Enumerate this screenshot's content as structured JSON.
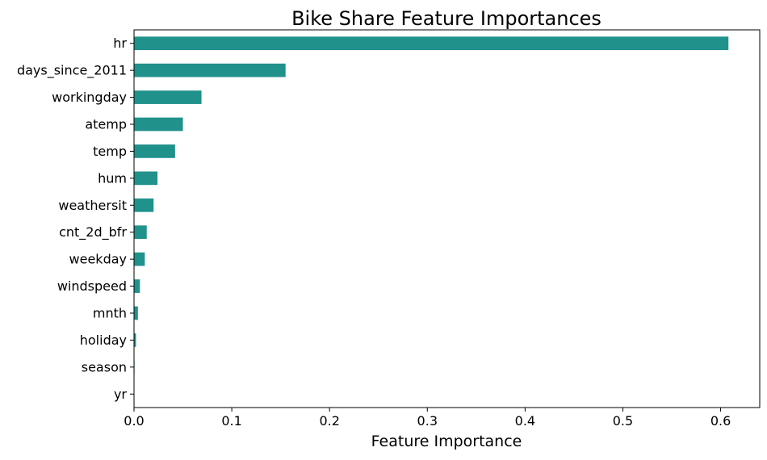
{
  "chart_data": {
    "type": "bar",
    "orientation": "horizontal",
    "title": "Bike Share Feature Importances",
    "xlabel": "Feature Importance",
    "ylabel": "",
    "categories": [
      "hr",
      "days_since_2011",
      "workingday",
      "atemp",
      "temp",
      "hum",
      "weathersit",
      "cnt_2d_bfr",
      "weekday",
      "windspeed",
      "mnth",
      "holiday",
      "season",
      "yr"
    ],
    "values": [
      0.608,
      0.155,
      0.069,
      0.05,
      0.042,
      0.024,
      0.02,
      0.013,
      0.011,
      0.006,
      0.004,
      0.002,
      0.0005,
      0.0002
    ],
    "xlim": [
      0.0,
      0.64
    ],
    "xticks": [
      "0.0",
      "0.1",
      "0.2",
      "0.3",
      "0.4",
      "0.5",
      "0.6"
    ],
    "grid": false,
    "legend": "none",
    "bar_color": "#21918c"
  }
}
